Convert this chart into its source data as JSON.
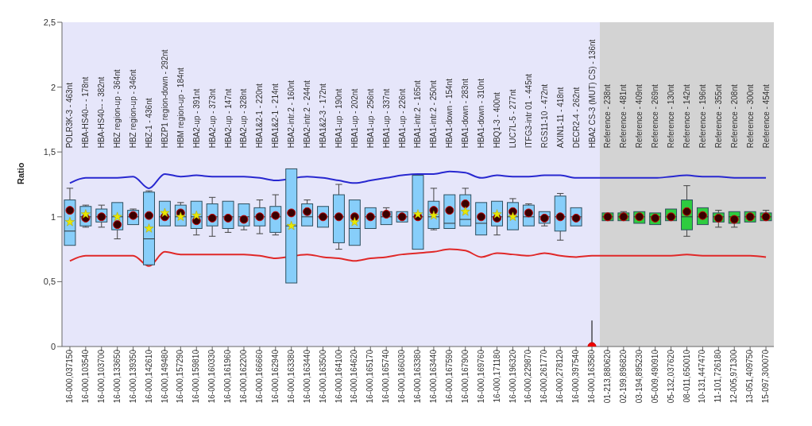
{
  "chart_data": {
    "type": "box",
    "ylabel": "Ratio",
    "ylim": [
      0,
      2.5
    ],
    "yticks": [
      0,
      {
        "value": 0.5,
        "label": "0,5"
      },
      1,
      {
        "value": 1.5,
        "label": "1,5"
      },
      2,
      {
        "value": 2.5,
        "label": "2,5"
      }
    ],
    "grid": false,
    "legend": false,
    "categories": [
      "16-000,037150",
      "16-000,103540",
      "16-000,103700",
      "16-000,133650",
      "16-000,139350",
      "16-000,142610",
      "16-000,149480",
      "16-000,157290",
      "16-000,159810",
      "16-000,160330",
      "16-000,161960",
      "16-000,162200",
      "16-000,166660",
      "16-000,162940",
      "16-000,163380",
      "16-000,163440",
      "16-000,163500",
      "16-000,164100",
      "16-000,164620",
      "16-000,165170",
      "16-000,165740",
      "16-000,166030",
      "16-000,163380",
      "16-000,163440",
      "16-000,167590",
      "16-000,167900",
      "16-000,169760",
      "16-000,171180",
      "16-000,196320",
      "16-000,229870",
      "16-000,261770",
      "16-000,278120",
      "16-000,397540",
      "16-000,163580",
      "01-213,880620",
      "02-199,896820",
      "03-194,895230",
      "05-009,490910",
      "05-132,037620",
      "08-011,650010",
      "10-131,447470",
      "11-101,726180",
      "12-005,971300",
      "13-051,409750",
      "15-097,300070"
    ],
    "annotations": [
      "POLR3K-3 - 463nt",
      "HBA-HS40-- - 178nt",
      "HBA-HS40-- - 382nt",
      "HBZ region-up - 364nt",
      "HBZ region-up - 346nt",
      "HBZ-1 - 436nt",
      "HBZP1 region-down - 292nt",
      "HBM region-up - 184nt",
      "HBA2-up - 391nt",
      "HBA2-up - 373nt",
      "HBA2-up - 147nt",
      "HBA2-up - 328nt",
      "HBA1&2-1 - 220nt",
      "HBA1&2-1 - 214nt",
      "HBA2-intr.2 - 160nt",
      "HBA2-intr.2 - 244nt",
      "HBA1&2-3 - 172nt",
      "HBA1-up - 190nt",
      "HBA1-up - 202nt",
      "HBA1-up - 256nt",
      "HBA1-up - 337nt",
      "HBA1-up - 226nt",
      "HBA1-intr.2 - 165nt",
      "HBA1-intr.2 - 250nt",
      "HBA1-down - 154nt",
      "HBA1-down - 283nt",
      "HBA1-down - 310nt",
      "HBQ1-3 - 400nt",
      "LUC7L-5 - 277nt",
      "ITFG3-intr 01 - 445nt",
      "RGS11-10 - 472nt",
      "AXIN1-11 - 418nt",
      "DECR2-4 - 262nt",
      "HBA2 CS-3 (MUT) CS) - 136nt",
      "Reference - 238nt",
      "Reference - 481nt",
      "Reference - 409nt",
      "Reference - 269nt",
      "Reference - 130nt",
      "Reference - 142nt",
      "Reference - 196nt",
      "Reference - 355nt",
      "Reference - 208nt",
      "Reference - 300nt",
      "Reference - 454nt"
    ],
    "bands": [
      {
        "axis": "x",
        "from": "16-000,037150",
        "to": "16-000,163580",
        "color": "#e6e6fa"
      },
      {
        "axis": "x",
        "from": "01-213,880620",
        "to": "15-097,300070",
        "color": "#d3d3d3"
      }
    ],
    "series": [
      {
        "type": "box",
        "colors": [
          "#87cefa",
          "#87cefa",
          "#87cefa",
          "#87cefa",
          "#87cefa",
          "#87cefa",
          "#87cefa",
          "#87cefa",
          "#87cefa",
          "#87cefa",
          "#87cefa",
          "#87cefa",
          "#87cefa",
          "#87cefa",
          "#87cefa",
          "#87cefa",
          "#87cefa",
          "#87cefa",
          "#87cefa",
          "#87cefa",
          "#87cefa",
          "#87cefa",
          "#87cefa",
          "#87cefa",
          "#87cefa",
          "#87cefa",
          "#87cefa",
          "#87cefa",
          "#87cefa",
          "#87cefa",
          "#87cefa",
          "#87cefa",
          "#87cefa",
          null,
          "#2ecc40",
          "#2ecc40",
          "#2ecc40",
          "#2ecc40",
          "#2ecc40",
          "#2ecc40",
          "#2ecc40",
          "#2ecc40",
          "#2ecc40",
          "#2ecc40",
          "#2ecc40"
        ],
        "boxes": [
          {
            "low": 0.78,
            "q1": 0.78,
            "median": 0.89,
            "q3": 1.13,
            "high": 1.22
          },
          {
            "low": 0.92,
            "q1": 0.93,
            "median": 1.0,
            "q3": 1.08,
            "high": 1.09
          },
          {
            "low": 0.92,
            "q1": 0.96,
            "median": 1.0,
            "q3": 1.06,
            "high": 1.09
          },
          {
            "low": 0.83,
            "q1": 0.9,
            "median": 1.0,
            "q3": 1.11,
            "high": 1.11
          },
          {
            "low": 0.94,
            "q1": 0.94,
            "median": 1.0,
            "q3": 1.05,
            "high": 1.06
          },
          {
            "low": 0.63,
            "q1": 0.63,
            "median": 0.83,
            "q3": 1.19,
            "high": 1.2
          },
          {
            "low": 0.93,
            "q1": 0.93,
            "median": 1.0,
            "q3": 1.12,
            "high": 1.12
          },
          {
            "low": 0.93,
            "q1": 0.93,
            "median": 1.0,
            "q3": 1.09,
            "high": 1.11
          },
          {
            "low": 0.86,
            "q1": 0.91,
            "median": 1.0,
            "q3": 1.12,
            "high": 1.12
          },
          {
            "low": 0.85,
            "q1": 0.93,
            "median": 1.0,
            "q3": 1.1,
            "high": 1.15
          },
          {
            "low": 0.88,
            "q1": 0.91,
            "median": 1.0,
            "q3": 1.12,
            "high": 1.12
          },
          {
            "low": 0.9,
            "q1": 0.93,
            "median": 1.0,
            "q3": 1.1,
            "high": 1.1
          },
          {
            "low": 0.87,
            "q1": 0.93,
            "median": 1.0,
            "q3": 1.07,
            "high": 1.13
          },
          {
            "low": 0.86,
            "q1": 0.88,
            "median": 1.0,
            "q3": 1.08,
            "high": 1.17
          },
          {
            "low": 0.49,
            "q1": 0.49,
            "median": 0.93,
            "q3": 1.37,
            "high": 1.37
          },
          {
            "low": 0.93,
            "q1": 0.93,
            "median": 1.0,
            "q3": 1.1,
            "high": 1.13
          },
          {
            "low": 0.92,
            "q1": 0.92,
            "median": 1.0,
            "q3": 1.08,
            "high": 1.08
          },
          {
            "low": 0.75,
            "q1": 0.8,
            "median": 1.0,
            "q3": 1.17,
            "high": 1.25
          },
          {
            "low": 0.78,
            "q1": 0.78,
            "median": 0.91,
            "q3": 1.13,
            "high": 1.13
          },
          {
            "low": 0.91,
            "q1": 0.91,
            "median": 1.0,
            "q3": 1.07,
            "high": 1.07
          },
          {
            "low": 0.94,
            "q1": 0.94,
            "median": 1.0,
            "q3": 1.04,
            "high": 1.07
          },
          {
            "low": 0.96,
            "q1": 0.96,
            "median": 1.0,
            "q3": 1.04,
            "high": 1.04
          },
          {
            "low": 0.75,
            "q1": 0.75,
            "median": 1.0,
            "q3": 1.32,
            "high": 1.32
          },
          {
            "low": 0.9,
            "q1": 0.91,
            "median": 1.0,
            "q3": 1.12,
            "high": 1.22
          },
          {
            "low": 0.91,
            "q1": 0.91,
            "median": 0.95,
            "q3": 1.17,
            "high": 1.17
          },
          {
            "low": 0.93,
            "q1": 0.93,
            "median": 0.98,
            "q3": 1.17,
            "high": 1.22
          },
          {
            "low": 0.86,
            "q1": 0.86,
            "median": 0.95,
            "q3": 1.11,
            "high": 1.11
          },
          {
            "low": 0.86,
            "q1": 0.93,
            "median": 1.0,
            "q3": 1.12,
            "high": 1.12
          },
          {
            "low": 0.9,
            "q1": 0.9,
            "median": 1.0,
            "q3": 1.11,
            "high": 1.14
          },
          {
            "low": 0.93,
            "q1": 0.93,
            "median": 1.0,
            "q3": 1.09,
            "high": 1.1
          },
          {
            "low": 0.93,
            "q1": 0.95,
            "median": 1.0,
            "q3": 1.04,
            "high": 1.04
          },
          {
            "low": 0.82,
            "q1": 0.89,
            "median": 1.0,
            "q3": 1.16,
            "high": 1.18
          },
          {
            "low": 0.93,
            "q1": 0.93,
            "median": 1.0,
            "q3": 1.07,
            "high": 1.07
          },
          null,
          {
            "low": 0.97,
            "q1": 0.97,
            "median": 1.0,
            "q3": 1.03,
            "high": 1.03
          },
          {
            "low": 0.97,
            "q1": 0.97,
            "median": 1.0,
            "q3": 1.03,
            "high": 1.04
          },
          {
            "low": 0.95,
            "q1": 0.95,
            "median": 1.0,
            "q3": 1.04,
            "high": 1.04
          },
          {
            "low": 0.94,
            "q1": 0.94,
            "median": 1.0,
            "q3": 1.03,
            "high": 1.03
          },
          {
            "low": 0.97,
            "q1": 0.97,
            "median": 1.0,
            "q3": 1.06,
            "high": 1.06
          },
          {
            "low": 0.85,
            "q1": 0.9,
            "median": 1.0,
            "q3": 1.13,
            "high": 1.24
          },
          {
            "low": 0.94,
            "q1": 0.94,
            "median": 1.0,
            "q3": 1.07,
            "high": 1.07
          },
          {
            "low": 0.92,
            "q1": 0.96,
            "median": 1.0,
            "q3": 1.03,
            "high": 1.05
          },
          {
            "low": 0.92,
            "q1": 0.95,
            "median": 1.0,
            "q3": 1.04,
            "high": 1.04
          },
          {
            "low": 0.96,
            "q1": 0.96,
            "median": 1.0,
            "q3": 1.04,
            "high": 1.04
          },
          {
            "low": 0.97,
            "q1": 0.97,
            "median": 1.0,
            "q3": 1.03,
            "high": 1.05
          }
        ]
      },
      {
        "type": "line",
        "color": "#2828d0",
        "marker": "none",
        "line_style": "solid",
        "values": [
          1.26,
          1.3,
          1.3,
          1.3,
          1.31,
          1.22,
          1.33,
          1.31,
          1.32,
          1.31,
          1.31,
          1.31,
          1.3,
          1.28,
          null,
          1.31,
          1.3,
          1.28,
          1.26,
          1.28,
          1.3,
          1.32,
          1.33,
          1.33,
          1.35,
          1.34,
          1.3,
          1.32,
          1.31,
          1.31,
          1.32,
          1.32,
          1.3,
          1.3,
          1.3,
          1.3,
          1.3,
          1.3,
          1.31,
          1.32,
          1.31,
          1.31,
          1.3,
          1.3,
          1.3
        ]
      },
      {
        "type": "line",
        "color": "#e02828",
        "marker": "none",
        "line_style": "solid",
        "values": [
          0.66,
          0.7,
          0.7,
          0.7,
          0.7,
          0.62,
          0.73,
          0.71,
          0.71,
          0.71,
          0.71,
          0.71,
          0.7,
          0.68,
          null,
          0.71,
          0.69,
          0.68,
          0.66,
          0.68,
          0.69,
          0.71,
          0.72,
          0.73,
          0.75,
          0.74,
          0.69,
          0.72,
          0.71,
          0.7,
          0.72,
          0.7,
          0.69,
          0.7,
          0.7,
          0.7,
          0.7,
          0.7,
          0.7,
          0.71,
          0.7,
          0.7,
          0.7,
          0.7,
          0.69
        ]
      },
      {
        "type": "scatter",
        "color": "#e8e800",
        "marker": "star",
        "values": [
          0.96,
          1.02,
          null,
          1.0,
          null,
          0.91,
          1.03,
          1.0,
          1.01,
          null,
          null,
          null,
          null,
          null,
          0.93,
          null,
          null,
          null,
          0.96,
          null,
          null,
          null,
          1.02,
          1.01,
          null,
          1.04,
          null,
          1.02,
          1.0,
          null,
          null,
          null,
          null,
          null,
          null,
          null,
          null,
          null,
          null,
          null,
          null,
          null,
          null,
          null,
          null
        ]
      },
      {
        "type": "scatter",
        "marker": "circle",
        "colors": [
          "#3a0000",
          "#3a0000",
          "#3a0000",
          "#3a0000",
          "#3a0000",
          "#3a0000",
          "#3a0000",
          "#3a0000",
          "#3a0000",
          "#3a0000",
          "#3a0000",
          "#3a0000",
          "#3a0000",
          "#3a0000",
          "#3a0000",
          "#3a0000",
          "#3a0000",
          "#3a0000",
          "#3a0000",
          "#3a0000",
          "#3a0000",
          "#3a0000",
          "#3a0000",
          "#3a0000",
          "#3a0000",
          "#3a0000",
          "#3a0000",
          "#3a0000",
          "#3a0000",
          "#3a0000",
          "#3a0000",
          "#3a0000",
          "#3a0000",
          "#ee0000",
          "#3a0000",
          "#3a0000",
          "#3a0000",
          "#3a0000",
          "#3a0000",
          "#3a0000",
          "#3a0000",
          "#3a0000",
          "#3a0000",
          "#3a0000",
          "#3a0000"
        ],
        "values": [
          1.05,
          0.99,
          1.0,
          0.94,
          1.01,
          1.01,
          1.0,
          1.03,
          0.97,
          0.99,
          0.99,
          0.98,
          1.0,
          1.01,
          1.03,
          1.04,
          1.0,
          1.0,
          1.0,
          1.0,
          1.02,
          1.0,
          1.0,
          1.05,
          1.05,
          1.1,
          1.0,
          0.99,
          1.04,
          1.03,
          0.99,
          1.0,
          0.99,
          0,
          1.0,
          1.0,
          1.0,
          0.99,
          1.0,
          1.04,
          1.01,
          0.99,
          0.98,
          1.0,
          1.0
        ],
        "errors": [
          null,
          null,
          null,
          null,
          null,
          null,
          null,
          null,
          null,
          null,
          null,
          null,
          null,
          null,
          null,
          null,
          null,
          null,
          null,
          null,
          null,
          null,
          null,
          null,
          null,
          null,
          null,
          null,
          null,
          null,
          null,
          null,
          null,
          [
            0,
            0.2
          ],
          null,
          null,
          null,
          null,
          null,
          null,
          null,
          null,
          null,
          null,
          null
        ]
      }
    ]
  }
}
